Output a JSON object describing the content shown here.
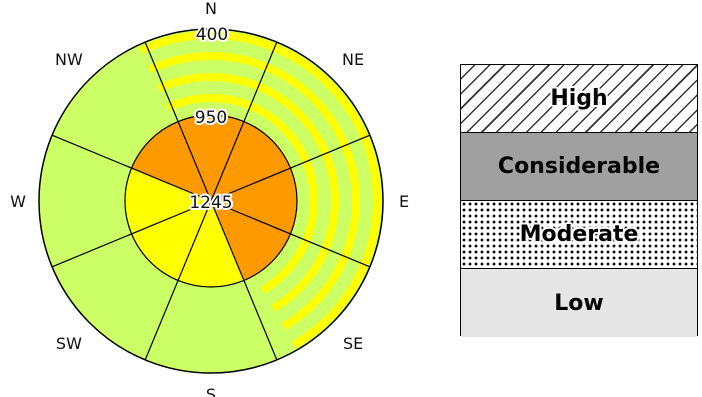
{
  "rose": {
    "directions": [
      {
        "key": "N",
        "label": "N",
        "angle": 0
      },
      {
        "key": "NE",
        "label": "NE",
        "angle": 45
      },
      {
        "key": "E",
        "label": "E",
        "angle": 90
      },
      {
        "key": "SE",
        "label": "SE",
        "angle": 135
      },
      {
        "key": "S",
        "label": "S",
        "angle": 180
      },
      {
        "key": "SW",
        "label": "SW",
        "angle": 225
      },
      {
        "key": "W",
        "label": "W",
        "angle": 270
      },
      {
        "key": "NW",
        "label": "NW",
        "angle": 315
      }
    ],
    "elevations": {
      "outer": "400",
      "middle": "950",
      "inner": "1245"
    },
    "colors": {
      "green": "#ccff66",
      "yellow": "#ffff00",
      "orange": "#ff9900",
      "outline": "#000000"
    },
    "outer_ring": {
      "striped_range_deg": [
        -25,
        150
      ],
      "stripe_color": "yellow"
    },
    "middle_ring": {
      "sectors": [
        {
          "from": -22.5,
          "to": 22.5,
          "color": "orange"
        },
        {
          "from": 22.5,
          "to": 67.5,
          "color": "orange"
        },
        {
          "from": 67.5,
          "to": 112.5,
          "color": "orange"
        },
        {
          "from": 112.5,
          "to": 157.5,
          "color": "orange"
        },
        {
          "from": 157.5,
          "to": 202.5,
          "color": "orange"
        },
        {
          "from": 202.5,
          "to": 247.5,
          "color": "orange"
        },
        {
          "from": 247.5,
          "to": 292.5,
          "color": "orange"
        },
        {
          "from": 292.5,
          "to": 337.5,
          "color": "orange"
        }
      ]
    },
    "inner_disc": {
      "sectors": [
        {
          "from": -22.5,
          "to": 22.5,
          "color": "orange"
        },
        {
          "from": 22.5,
          "to": 67.5,
          "color": "orange"
        },
        {
          "from": 67.5,
          "to": 112.5,
          "color": "orange"
        },
        {
          "from": 112.5,
          "to": 157.5,
          "color": "orange"
        },
        {
          "from": 157.5,
          "to": 202.5,
          "color": "yellow"
        },
        {
          "from": 202.5,
          "to": 247.5,
          "color": "yellow"
        },
        {
          "from": 247.5,
          "to": 292.5,
          "color": "yellow"
        },
        {
          "from": 292.5,
          "to": 337.5,
          "color": "orange"
        }
      ]
    }
  },
  "legend": {
    "items": [
      {
        "key": "high",
        "label": "High"
      },
      {
        "key": "considerable",
        "label": "Considerable"
      },
      {
        "key": "moderate",
        "label": "Moderate"
      },
      {
        "key": "low",
        "label": "Low"
      }
    ]
  }
}
